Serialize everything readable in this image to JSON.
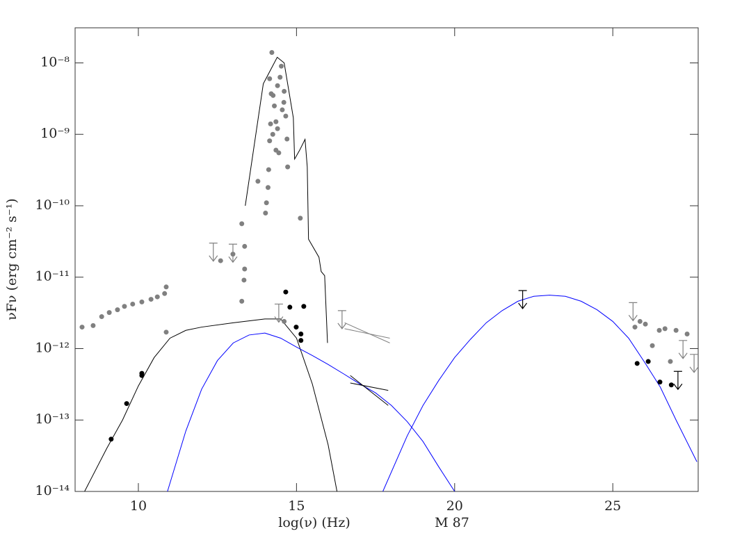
{
  "chart_data": {
    "type": "scatter",
    "x_label": "log(ν) (Hz)",
    "y_label": "νFν (erg cm⁻² s⁻¹)",
    "annotation": "M 87",
    "xlim": [
      8,
      27.7
    ],
    "ylim": [
      1e-14,
      3.1e-08
    ],
    "log_y": true,
    "xticks": [
      10,
      15,
      20,
      25
    ],
    "yticks": [
      {
        "value": 1e-14,
        "label": "10⁻¹⁴"
      },
      {
        "value": 1e-13,
        "label": "10⁻¹³"
      },
      {
        "value": 1e-12,
        "label": "10⁻¹²"
      },
      {
        "value": 1e-11,
        "label": "10⁻¹¹"
      },
      {
        "value": 1e-10,
        "label": "10⁻¹⁰"
      },
      {
        "value": 1e-09,
        "label": "10⁻⁹"
      },
      {
        "value": 1e-08,
        "label": "10⁻⁸"
      }
    ],
    "series": [
      {
        "type": "line",
        "color": "#000000",
        "x": [
          13.38,
          13.95,
          14.39,
          14.61,
          14.9,
          14.94,
          15.1,
          15.27,
          15.34,
          15.38,
          15.71,
          15.78,
          15.89,
          15.98
        ],
        "values": [
          1e-10,
          5.1e-09,
          1.2e-08,
          1e-08,
          1.7e-09,
          4.5e-10,
          6e-10,
          8.5e-10,
          3.5e-10,
          3.4e-11,
          1.9e-11,
          1.2e-11,
          1.05e-11,
          1.2e-12
        ]
      },
      {
        "type": "line",
        "color": "#000000",
        "x": [
          8.3,
          9,
          9.5,
          10,
          10.5,
          11,
          11.5,
          12,
          13,
          14,
          14.5,
          15,
          15.5,
          16,
          16.28
        ],
        "values": [
          1e-14,
          4e-14,
          1e-13,
          3e-13,
          7.5e-13,
          1.4e-12,
          1.8e-12,
          2e-12,
          2.3e-12,
          2.6e-12,
          2.6e-12,
          1.4e-12,
          3.2e-13,
          4.5e-14,
          1e-14
        ]
      },
      {
        "type": "line",
        "color": "#0000ff",
        "x": [
          10.92,
          11.5,
          12,
          12.5,
          13,
          13.5,
          14,
          14.5,
          15,
          15.5,
          16,
          16.5,
          17,
          17.5,
          18,
          18.5,
          19,
          19.5,
          20
        ],
        "values": [
          1e-14,
          7e-14,
          2.7e-13,
          6.8e-13,
          1.2e-12,
          1.55e-12,
          1.65e-12,
          1.4e-12,
          1.05e-12,
          8e-13,
          6e-13,
          4.4e-13,
          3.2e-13,
          2.4e-13,
          1.6e-13,
          9.5e-14,
          5e-14,
          2.2e-14,
          1e-14
        ]
      },
      {
        "type": "line",
        "color": "#0000ff",
        "x": [
          17.73,
          18.5,
          19,
          19.5,
          20,
          20.5,
          21,
          21.5,
          22,
          22.5,
          23,
          23.5,
          24,
          24.5,
          25,
          25.5,
          26,
          26.5,
          27,
          27.66
        ],
        "values": [
          1e-14,
          6e-14,
          1.6e-13,
          3.6e-13,
          7.5e-13,
          1.35e-12,
          2.3e-12,
          3.4e-12,
          4.6e-12,
          5.4e-12,
          5.6e-12,
          5.4e-12,
          4.6e-12,
          3.5e-12,
          2.4e-12,
          1.4e-12,
          6.5e-13,
          2.9e-13,
          1e-13,
          2.6e-14
        ]
      },
      {
        "type": "line",
        "color": "#808080",
        "x": [
          16.52,
          17.95
        ],
        "values": [
          2.3e-12,
          1.2e-12
        ]
      },
      {
        "type": "line",
        "color": "#808080",
        "x": [
          16.52,
          17.95
        ],
        "values": [
          1.9e-12,
          1.4e-12
        ]
      },
      {
        "type": "line",
        "color": "#000000",
        "x": [
          16.7,
          17.9
        ],
        "values": [
          4.2e-13,
          1.6e-13
        ]
      },
      {
        "type": "line",
        "color": "#000000",
        "x": [
          16.7,
          17.9
        ],
        "values": [
          3.3e-13,
          2.6e-13
        ]
      },
      {
        "type": "scatter",
        "color": "#808080",
        "x": [
          8.22,
          8.57,
          8.84,
          9.08,
          9.34,
          9.56,
          9.82,
          10.11,
          10.4,
          10.6,
          10.83,
          10.88,
          10.88,
          12.6,
          12.99,
          13.27,
          13.27,
          13.34,
          13.36,
          13.36,
          13.78,
          14.02,
          14.05,
          14.1,
          14.12,
          14.15,
          14.18,
          14.2,
          14.22,
          14.26,
          14.3,
          14.35,
          14.35,
          14.4,
          14.44,
          14.48,
          14.52,
          14.55,
          14.61,
          14.66,
          14.7,
          14.72,
          14.25,
          14.15,
          14.4,
          14.6,
          15.12,
          14.61,
          25.7,
          25.86,
          26.03,
          26.25,
          26.47,
          26.65,
          26.82,
          27.0,
          27.35
        ],
        "values": [
          2e-12,
          2.1e-12,
          2.8e-12,
          3.2e-12,
          3.5e-12,
          3.9e-12,
          4.2e-12,
          4.5e-12,
          4.9e-12,
          5.3e-12,
          5.9e-12,
          7.3e-12,
          1.7e-12,
          1.7e-11,
          2.1e-11,
          5.6e-11,
          4.6e-12,
          9.1e-12,
          1.3e-11,
          2.7e-11,
          2.2e-10,
          7.9e-11,
          1.1e-10,
          1.8e-10,
          3.2e-10,
          8.1e-10,
          1.4e-09,
          3.7e-09,
          1.4e-08,
          3.5e-09,
          2.5e-09,
          1.5e-09,
          6e-10,
          4.8e-09,
          5.5e-10,
          6.3e-09,
          9e-09,
          2.2e-09,
          4e-09,
          1.8e-09,
          8.6e-10,
          3.5e-10,
          1e-09,
          6e-09,
          1.2e-09,
          2.8e-09,
          6.7e-11,
          2.4e-12,
          2e-12,
          2.4e-12,
          2.2e-12,
          1.1e-12,
          1.8e-12,
          1.9e-12,
          6.6e-13,
          1.8e-12,
          1.6e-12
        ]
      },
      {
        "type": "scatter",
        "color": "#000000",
        "x": [
          9.14,
          9.63,
          10.11,
          10.11,
          14.66,
          14.79,
          14.99,
          15.14,
          15.14,
          15.23,
          25.77,
          26.12,
          26.49,
          26.85
        ],
        "values": [
          5.4e-14,
          1.7e-13,
          4.2e-13,
          4.5e-13,
          6.2e-12,
          3.8e-12,
          2e-12,
          1.6e-12,
          1.3e-12,
          3.9e-12,
          6.2e-13,
          6.6e-13,
          3.4e-13,
          3.1e-13
        ]
      },
      {
        "type": "upper_limit",
        "color": "#808080",
        "x": [
          12.37,
          12.99,
          14.44,
          16.44,
          25.64,
          27.22,
          27.57
        ],
        "values": [
          3e-11,
          2.9e-11,
          4.2e-12,
          3.4e-12,
          4.4e-12,
          1.3e-12,
          8.3e-13
        ]
      },
      {
        "type": "upper_limit",
        "color": "#000000",
        "x": [
          22.15,
          27.06
        ],
        "values": [
          6.5e-12,
          4.8e-13
        ]
      }
    ]
  }
}
